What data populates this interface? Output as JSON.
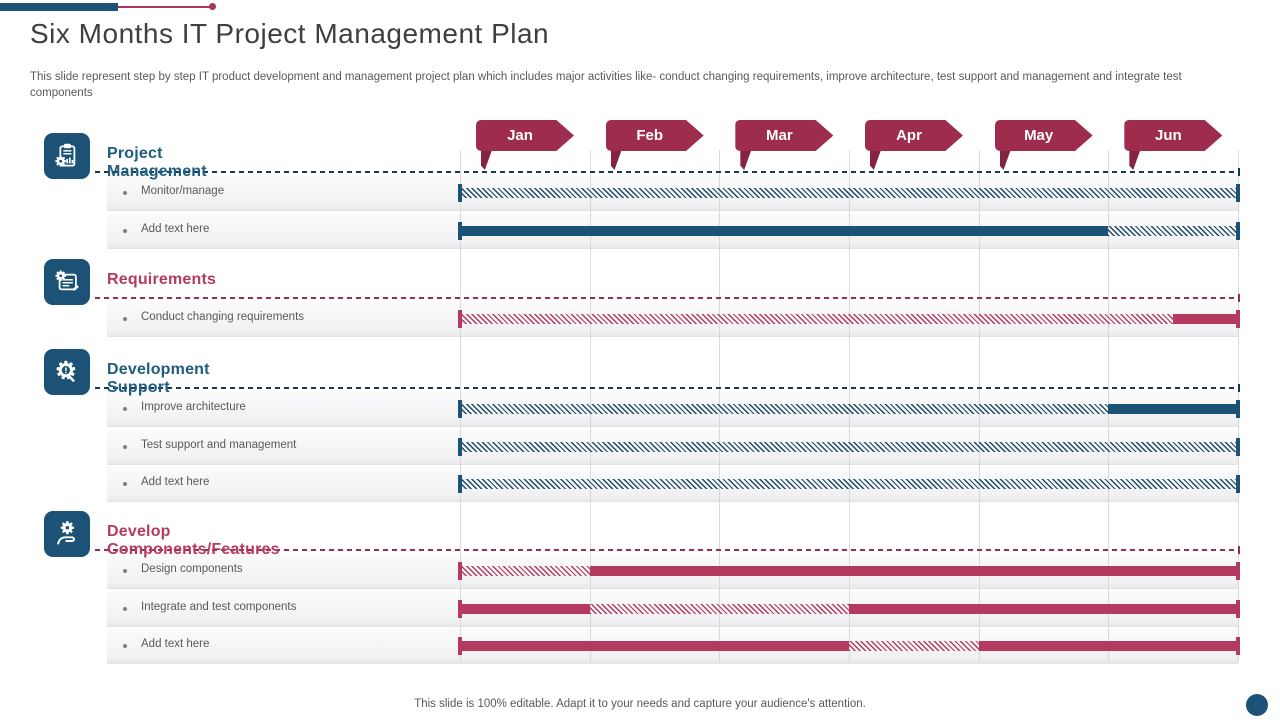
{
  "slide": {
    "title": "Six Months IT Project Management Plan",
    "subtitle": "This slide represent step by step IT  product development and management project plan which includes major activities like- conduct changing requirements, improve architecture, test support and management and integrate test components",
    "footer": "This slide is 100% editable. Adapt it to your needs and capture your audience's attention."
  },
  "colors": {
    "blue_solid": "#1b5276",
    "blue_heading": "#1f5c7e",
    "blue_hatch": "#1d4a66",
    "crimson_banner": "#9e2c4f",
    "crimson_banner_tail": "#852442",
    "crimson_solid": "#b43a5f",
    "crimson_hatch": "#b43a5f",
    "gridline": "#d9d9d9",
    "row_text": "#595959",
    "title_text": "#3f3f3f"
  },
  "chart_data": {
    "type": "gantt",
    "title": "Six Months IT Project Management Plan",
    "x_categories": [
      "Jan",
      "Feb",
      "Mar",
      "Apr",
      "May",
      "Jun"
    ],
    "x_range_units": [
      0,
      6
    ],
    "grid": true,
    "legend": false,
    "sections": [
      {
        "name": "Project Management",
        "theme": "blue",
        "icon": "clipboard-chart-gear-icon",
        "tasks": [
          {
            "label": "Monitor/manage",
            "segments": [
              {
                "style": "hatched",
                "start": 0,
                "end": 6
              }
            ]
          },
          {
            "label": "Add text here",
            "segments": [
              {
                "style": "solid",
                "start": 0,
                "end": 5
              },
              {
                "style": "hatched",
                "start": 5,
                "end": 6
              }
            ]
          }
        ]
      },
      {
        "name": "Requirements",
        "theme": "crimson",
        "icon": "document-gear-icon",
        "tasks": [
          {
            "label": "Conduct  changing  requirements",
            "segments": [
              {
                "style": "hatched",
                "start": 0,
                "end": 5.5
              },
              {
                "style": "solid",
                "start": 5.5,
                "end": 6
              }
            ]
          }
        ]
      },
      {
        "name": "Development Support",
        "theme": "blue",
        "icon": "gear-magnifier-icon",
        "tasks": [
          {
            "label": "Improve  architecture",
            "segments": [
              {
                "style": "hatched",
                "start": 0,
                "end": 5
              },
              {
                "style": "solid",
                "start": 5,
                "end": 6
              }
            ]
          },
          {
            "label": "Test support  and  management",
            "segments": [
              {
                "style": "hatched",
                "start": 0,
                "end": 6
              }
            ]
          },
          {
            "label": "Add text here",
            "segments": [
              {
                "style": "hatched",
                "start": 0,
                "end": 6
              }
            ]
          }
        ]
      },
      {
        "name": "Develop Components/Features",
        "theme": "crimson",
        "icon": "hand-gear-icon",
        "tasks": [
          {
            "label": "Design  components",
            "segments": [
              {
                "style": "hatched",
                "start": 0,
                "end": 1
              },
              {
                "style": "solid",
                "start": 1,
                "end": 6
              }
            ]
          },
          {
            "label": "Integrate  and test components",
            "segments": [
              {
                "style": "solid",
                "start": 0,
                "end": 1
              },
              {
                "style": "hatched",
                "start": 1,
                "end": 3
              },
              {
                "style": "solid",
                "start": 3,
                "end": 6
              }
            ]
          },
          {
            "label": "Add text here",
            "segments": [
              {
                "style": "solid",
                "start": 0,
                "end": 3
              },
              {
                "style": "hatched",
                "start": 3,
                "end": 4
              },
              {
                "style": "solid",
                "start": 4,
                "end": 6
              }
            ]
          }
        ]
      }
    ]
  }
}
